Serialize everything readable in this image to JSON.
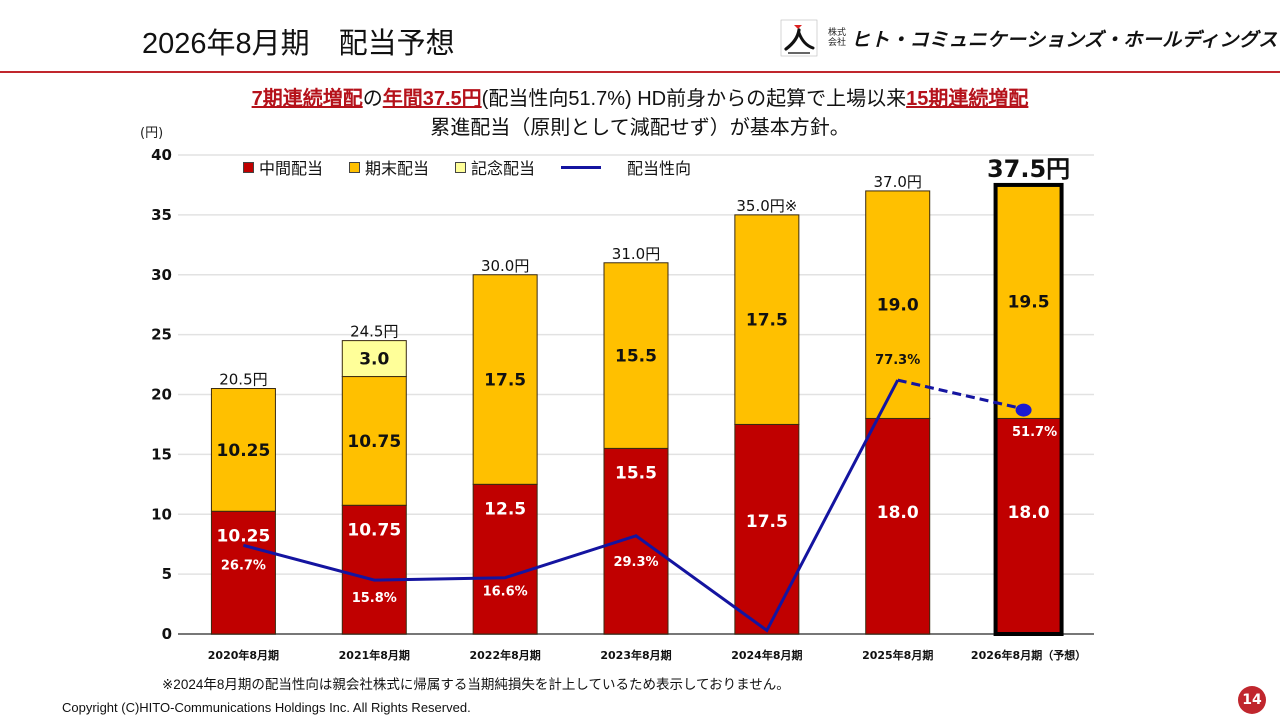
{
  "header": {
    "title": "2026年8月期　配当予想",
    "logo_small_top": "株式",
    "logo_small_bottom": "会社",
    "logo_text": "ヒト・コミュニケーションズ・ホールディングス"
  },
  "headline": {
    "line1_part1": "7期連続増配",
    "line1_part2": "の",
    "line1_part3": "年間37.5円",
    "line1_part4": "(配当性向51.7%) HD前身からの起算で上場以来",
    "line1_part5": "15期連続増配",
    "line2": "累進配当（原則として減配せず）が基本方針。"
  },
  "colors": {
    "interim": "#c00000",
    "year_end": "#ffc000",
    "commemorative": "#ffff99",
    "payout_line": "#1414a0",
    "accent": "#c0262d"
  },
  "legend": [
    {
      "label": "中間配当",
      "key": "interim"
    },
    {
      "label": "期末配当",
      "key": "year_end"
    },
    {
      "label": "記念配当",
      "key": "commemorative"
    },
    {
      "label": "配当性向",
      "key": "payout_line"
    }
  ],
  "chart_data": {
    "type": "bar",
    "stacked": true,
    "title": "",
    "ylabel": "(円)",
    "xlabel": "",
    "ylim": [
      0,
      40
    ],
    "yticks": [
      0,
      5,
      10,
      15,
      20,
      25,
      30,
      35,
      40
    ],
    "grid": true,
    "legend_position": "top",
    "categories": [
      "2020年8月期",
      "2021年8月期",
      "2022年8月期",
      "2023年8月期",
      "2024年8月期",
      "2025年8月期",
      "2026年8月期（予想）"
    ],
    "series": [
      {
        "name": "中間配当",
        "values": [
          10.25,
          10.75,
          12.5,
          15.5,
          17.5,
          18.0,
          18.0
        ],
        "labels": [
          "10.25",
          "10.75",
          "12.5",
          "15.5",
          "17.5",
          "18.0",
          "18.0"
        ]
      },
      {
        "name": "期末配当",
        "values": [
          10.25,
          10.75,
          17.5,
          15.5,
          17.5,
          19.0,
          19.5
        ],
        "labels": [
          "10.25",
          "10.75",
          "17.5",
          "15.5",
          "17.5",
          "19.0",
          "19.5"
        ]
      },
      {
        "name": "記念配当",
        "values": [
          0,
          3.0,
          0,
          0,
          0,
          0,
          0
        ],
        "labels": [
          "",
          "3.0",
          "",
          "",
          "",
          "",
          ""
        ]
      }
    ],
    "totals": [
      "20.5円",
      "24.5円",
      "30.0円",
      "31.0円",
      "35.0円※",
      "37.0円",
      "37.5円"
    ],
    "payout_ratio": {
      "name": "配当性向",
      "type": "line",
      "values_percent": [
        26.7,
        15.8,
        16.6,
        29.3,
        null,
        77.3,
        51.7
      ],
      "labels": [
        "26.7%",
        "15.8%",
        "16.6%",
        "29.3%",
        "",
        "77.3%",
        "51.7%"
      ],
      "plot_y_on_left_axis": [
        7.4,
        4.5,
        4.7,
        8.2,
        0.3,
        21.2,
        18.7
      ],
      "forecast_last_segment_dashed": true
    },
    "highlight_category": "2026年8月期（予想）"
  },
  "footnote": "※2024年8月期の配当性向は親会社株式に帰属する当期純損失を計上しているため表示しておりません。",
  "copyright": "Copyright (C)HITO-Communications Holdings Inc. All Rights Reserved.",
  "page_number": "14"
}
